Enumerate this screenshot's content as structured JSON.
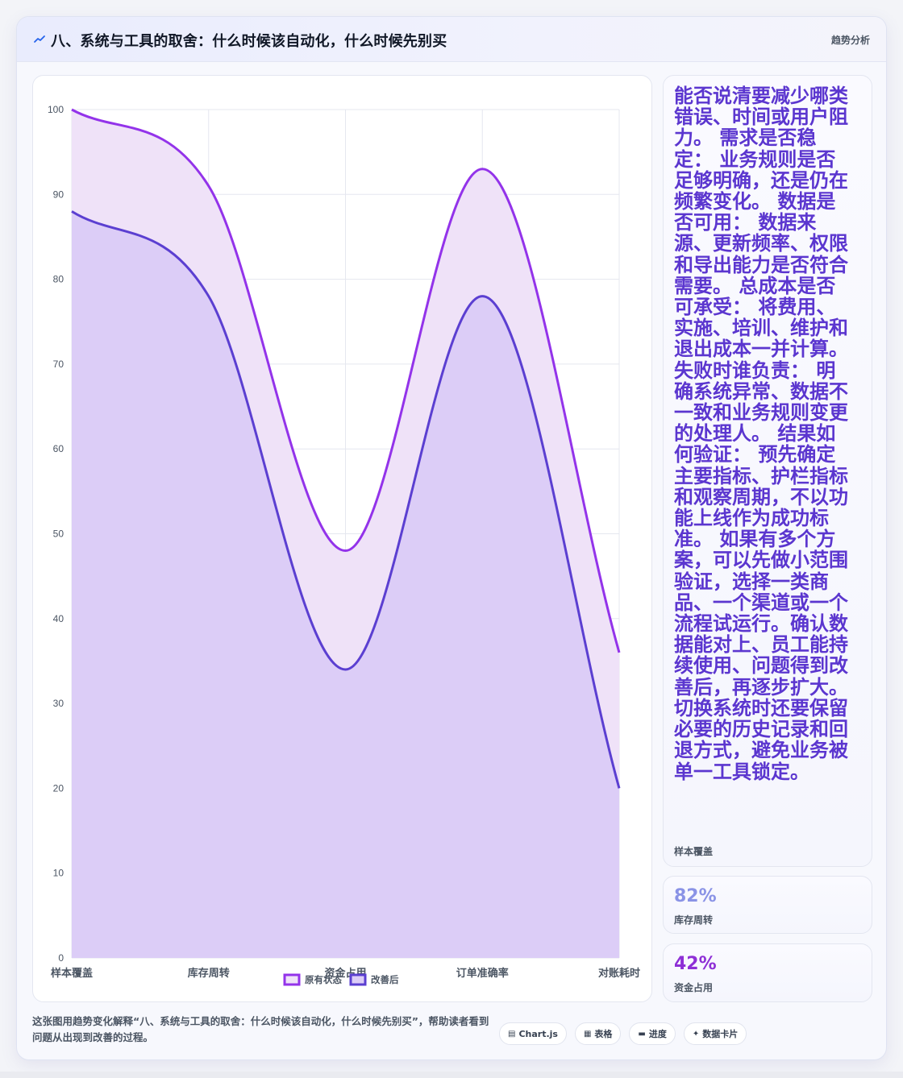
{
  "header": {
    "icon": "trend-line-icon",
    "title": "八、系统与工具的取舍：什么时候该自动化，什么时候先别买",
    "tag": "趋势分析"
  },
  "chart_data": {
    "type": "area",
    "categories": [
      "样本覆盖",
      "库存周转",
      "资金占用",
      "订单准确率",
      "对账耗时"
    ],
    "ylim": [
      0,
      100
    ],
    "yticks": [
      0,
      10,
      20,
      30,
      40,
      50,
      60,
      70,
      80,
      90,
      100
    ],
    "grid": true,
    "legend_position": "bottom",
    "series": [
      {
        "name": "原有状态",
        "values": [
          100,
          91,
          48,
          93,
          36
        ],
        "color": "#9333ea",
        "fill": "#efe2f8"
      },
      {
        "name": "改善后",
        "values": [
          88,
          78,
          34,
          78,
          20
        ],
        "color": "#5b3fd1",
        "fill": "#dccdf7"
      }
    ]
  },
  "cards": [
    {
      "text": "能否说清要减少哪类错误、时间或用户阻力。 需求是否稳定： 业务规则是否足够明确，还是仍在频繁变化。 数据是否可用： 数据来源、更新频率、权限和导出能力是否符合需要。 总成本是否可承受： 将费用、实施、培训、维护和退出成本一并计算。 失败时谁负责： 明确系统异常、数据不一致和业务规则变更的处理人。 结果如何验证： 预先确定主要指标、护栏指标和观察周期，不以功能上线作为成功标准。 如果有多个方案，可以先做小范围验证，选择一类商品、一个渠道或一个流程试运行。确认数据能对上、员工能持续使用、问题得到改善后，再逐步扩大。切换系统时还要保留必要的历史记录和回退方式，避免业务被单一工具锁定。",
      "label": "样本覆盖",
      "color": "#5b36cf"
    },
    {
      "value": "82%",
      "label": "库存周转",
      "color": "#8a93e6"
    },
    {
      "value": "42%",
      "label": "资金占用",
      "color": "#8e2fd6"
    }
  ],
  "footer": {
    "caption": "这张图用趋势变化解释“八、系统与工具的取舍：什么时候该自动化，什么时候先别买”，帮助读者看到问题从出现到改善的过程。",
    "pills": [
      {
        "icon": "chart-icon",
        "glyph": "▤",
        "label": "Chart.js"
      },
      {
        "icon": "table-icon",
        "glyph": "▦",
        "label": "表格"
      },
      {
        "icon": "progress-icon",
        "glyph": "▬",
        "label": "进度"
      },
      {
        "icon": "sparkle-icon",
        "glyph": "✦",
        "label": "数据卡片"
      }
    ]
  }
}
